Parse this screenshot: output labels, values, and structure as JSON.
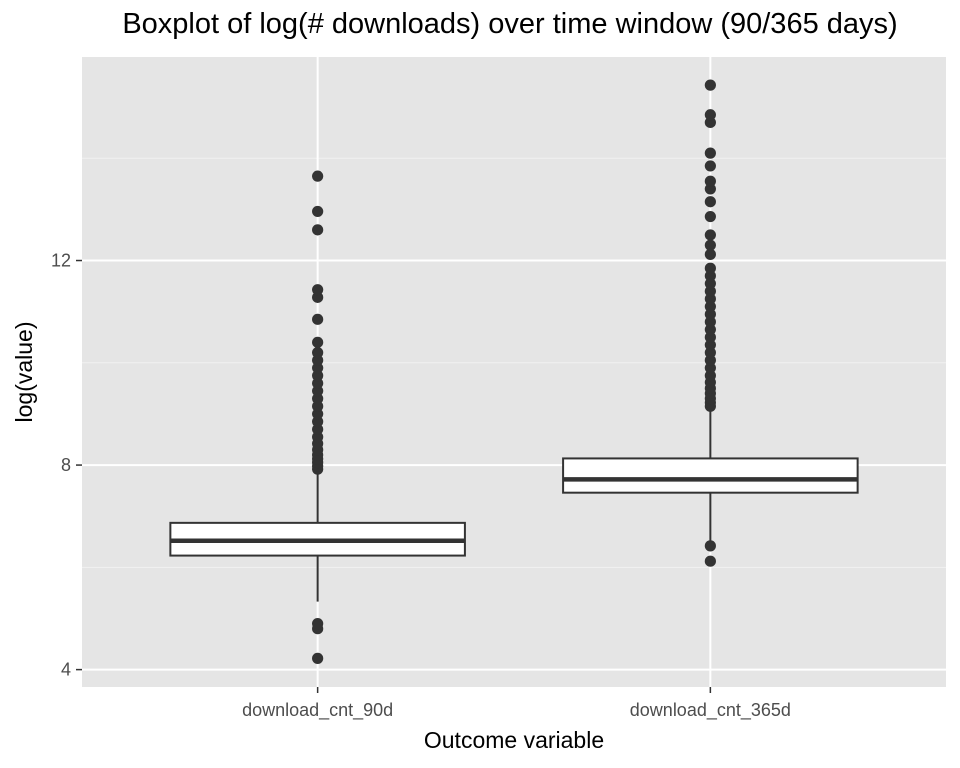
{
  "chart_data": {
    "type": "boxplot",
    "title": "Boxplot of log(# downloads) over time window (90/365 days)",
    "xlabel": "Outcome variable",
    "ylabel": "log(value)",
    "ylim": [
      3.66,
      15.98
    ],
    "yticks": [
      4,
      8,
      12
    ],
    "grid": true,
    "categories": [
      "download_cnt_90d",
      "download_cnt_365d"
    ],
    "boxes": [
      {
        "category": "download_cnt_90d",
        "q1": 6.23,
        "median": 6.52,
        "q3": 6.87,
        "whisker_low": 5.33,
        "whisker_high": 7.9,
        "outliers": [
          4.22,
          4.8,
          4.9,
          7.92,
          7.98,
          8.05,
          8.12,
          8.2,
          8.3,
          8.42,
          8.55,
          8.7,
          8.85,
          9.0,
          9.15,
          9.3,
          9.45,
          9.6,
          9.75,
          9.9,
          10.05,
          10.2,
          10.4,
          10.85,
          11.28,
          11.43,
          12.6,
          12.96,
          13.65
        ]
      },
      {
        "category": "download_cnt_365d",
        "q1": 7.46,
        "median": 7.72,
        "q3": 8.13,
        "whisker_low": 6.5,
        "whisker_high": 9.12,
        "outliers": [
          6.12,
          6.42,
          9.15,
          9.22,
          9.3,
          9.4,
          9.5,
          9.62,
          9.75,
          9.9,
          10.05,
          10.2,
          10.35,
          10.5,
          10.65,
          10.8,
          10.95,
          11.1,
          11.25,
          11.4,
          11.55,
          11.7,
          11.85,
          12.12,
          12.3,
          12.5,
          12.86,
          13.15,
          13.4,
          13.55,
          13.85,
          14.1,
          14.7,
          14.85,
          15.43
        ]
      }
    ]
  }
}
